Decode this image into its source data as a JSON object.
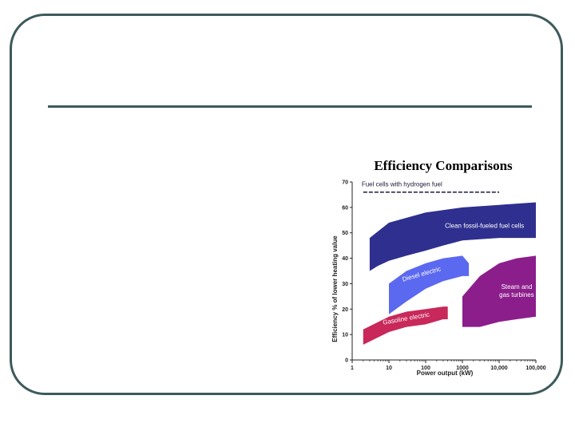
{
  "slide": {
    "chart_title": "Efficiency Comparisons"
  },
  "chart_data": {
    "type": "area",
    "title": "Efficiency Comparisons",
    "xlabel": "Power output (kW)",
    "ylabel": "Efficiency % of lower heating value",
    "x_scale": "log",
    "xlim": [
      1,
      100000
    ],
    "ylim": [
      0,
      70
    ],
    "x_ticks": [
      1,
      10,
      100,
      1000,
      10000,
      100000
    ],
    "x_tick_labels": [
      "1",
      "10",
      "100",
      "1000",
      "10,000",
      "100,000"
    ],
    "y_ticks": [
      0,
      10,
      20,
      30,
      40,
      50,
      60,
      70
    ],
    "y_tick_labels": [
      "0",
      "10",
      "20",
      "30",
      "40",
      "50",
      "60",
      "70"
    ],
    "grid": false,
    "reference_lines": [
      {
        "name": "Fuel cells with hydrogen fuel",
        "style": "dashed",
        "color": "#1a1a3a",
        "x": [
          2,
          10000
        ],
        "y": [
          66,
          66
        ]
      }
    ],
    "series": [
      {
        "name": "Clean fossil-fueled fuel cells",
        "color": "#2e2f8e",
        "upper": {
          "x": [
            3,
            10,
            100,
            1000,
            10000,
            100000
          ],
          "y": [
            48,
            54,
            58,
            60,
            61,
            62
          ]
        },
        "lower": {
          "x": [
            100000,
            10000,
            1000,
            300,
            100,
            30,
            10,
            5,
            3
          ],
          "y": [
            48,
            48,
            47,
            45,
            43,
            41,
            39,
            37,
            35
          ]
        }
      },
      {
        "name": "Diesel electric",
        "color": "#5b68f0",
        "upper": {
          "x": [
            10,
            30,
            100,
            300,
            1000,
            1500
          ],
          "y": [
            30,
            35,
            38,
            40,
            41,
            38
          ]
        },
        "lower": {
          "x": [
            1500,
            1000,
            300,
            100,
            30,
            10
          ],
          "y": [
            33,
            33,
            31,
            28,
            23,
            18
          ]
        }
      },
      {
        "name": "Gasoline electric",
        "color": "#c8285a",
        "upper": {
          "x": [
            2,
            10,
            30,
            100,
            300,
            400
          ],
          "y": [
            12,
            17,
            19,
            20,
            21,
            21
          ]
        },
        "lower": {
          "x": [
            400,
            300,
            100,
            30,
            10,
            2
          ],
          "y": [
            16,
            16,
            14,
            13,
            11,
            6
          ]
        }
      },
      {
        "name": "Steam and gas turbines",
        "color": "#8c1e8c",
        "upper": {
          "x": [
            1000,
            3000,
            10000,
            30000,
            100000
          ],
          "y": [
            25,
            33,
            38,
            40,
            41
          ]
        },
        "lower": {
          "x": [
            100000,
            30000,
            10000,
            3000,
            1000
          ],
          "y": [
            17,
            16,
            15,
            13,
            13
          ]
        }
      }
    ]
  }
}
